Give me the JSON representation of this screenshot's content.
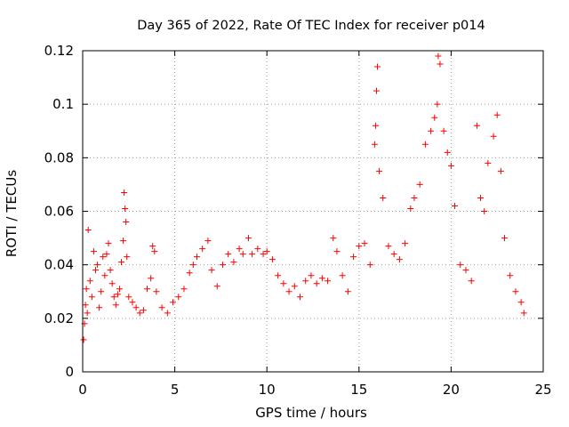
{
  "chart_data": {
    "type": "scatter",
    "title": "Day 365 of 2022, Rate Of TEC Index for receiver p014",
    "xlabel": "GPS time / hours",
    "ylabel": "ROTI / TECUs",
    "xlim": [
      0,
      25
    ],
    "ylim": [
      0,
      0.12
    ],
    "xticks": [
      0,
      5,
      10,
      15,
      20,
      25
    ],
    "yticks": [
      0,
      0.02,
      0.04,
      0.06,
      0.08,
      0.1,
      0.12
    ],
    "xtick_labels": [
      "0",
      "5",
      "10",
      "15",
      "20",
      "25"
    ],
    "ytick_labels": [
      "0",
      "0.02",
      "0.04",
      "0.06",
      "0.08",
      "0.1",
      "0.12"
    ],
    "grid": true,
    "marker": "+",
    "color": "#ff0000",
    "series": [
      {
        "name": "p014",
        "points": [
          [
            0.05,
            0.012
          ],
          [
            0.1,
            0.018
          ],
          [
            0.15,
            0.025
          ],
          [
            0.2,
            0.031
          ],
          [
            0.25,
            0.022
          ],
          [
            0.3,
            0.053
          ],
          [
            0.4,
            0.034
          ],
          [
            0.5,
            0.028
          ],
          [
            0.6,
            0.045
          ],
          [
            0.7,
            0.038
          ],
          [
            0.8,
            0.04
          ],
          [
            0.9,
            0.024
          ],
          [
            1.0,
            0.03
          ],
          [
            1.1,
            0.043
          ],
          [
            1.2,
            0.036
          ],
          [
            1.3,
            0.044
          ],
          [
            1.4,
            0.048
          ],
          [
            1.5,
            0.038
          ],
          [
            1.6,
            0.033
          ],
          [
            1.7,
            0.028
          ],
          [
            1.8,
            0.025
          ],
          [
            1.9,
            0.029
          ],
          [
            2.0,
            0.031
          ],
          [
            2.1,
            0.041
          ],
          [
            2.2,
            0.049
          ],
          [
            2.25,
            0.067
          ],
          [
            2.3,
            0.061
          ],
          [
            2.35,
            0.056
          ],
          [
            2.4,
            0.043
          ],
          [
            2.5,
            0.028
          ],
          [
            2.7,
            0.026
          ],
          [
            2.9,
            0.024
          ],
          [
            3.1,
            0.022
          ],
          [
            3.3,
            0.023
          ],
          [
            3.5,
            0.031
          ],
          [
            3.7,
            0.035
          ],
          [
            3.8,
            0.047
          ],
          [
            3.9,
            0.045
          ],
          [
            4.0,
            0.03
          ],
          [
            4.3,
            0.024
          ],
          [
            4.6,
            0.022
          ],
          [
            4.9,
            0.026
          ],
          [
            5.2,
            0.028
          ],
          [
            5.5,
            0.031
          ],
          [
            5.8,
            0.037
          ],
          [
            6.0,
            0.04
          ],
          [
            6.2,
            0.043
          ],
          [
            6.5,
            0.046
          ],
          [
            6.8,
            0.049
          ],
          [
            7.0,
            0.038
          ],
          [
            7.3,
            0.032
          ],
          [
            7.6,
            0.04
          ],
          [
            7.9,
            0.044
          ],
          [
            8.2,
            0.041
          ],
          [
            8.5,
            0.046
          ],
          [
            8.7,
            0.044
          ],
          [
            9.0,
            0.05
          ],
          [
            9.2,
            0.044
          ],
          [
            9.5,
            0.046
          ],
          [
            9.8,
            0.044
          ],
          [
            10.0,
            0.045
          ],
          [
            10.3,
            0.042
          ],
          [
            10.6,
            0.036
          ],
          [
            10.9,
            0.033
          ],
          [
            11.2,
            0.03
          ],
          [
            11.5,
            0.032
          ],
          [
            11.8,
            0.028
          ],
          [
            12.1,
            0.034
          ],
          [
            12.4,
            0.036
          ],
          [
            12.7,
            0.033
          ],
          [
            13.0,
            0.035
          ],
          [
            13.3,
            0.034
          ],
          [
            13.6,
            0.05
          ],
          [
            13.8,
            0.045
          ],
          [
            14.1,
            0.036
          ],
          [
            14.4,
            0.03
          ],
          [
            14.7,
            0.043
          ],
          [
            15.0,
            0.047
          ],
          [
            15.3,
            0.048
          ],
          [
            15.6,
            0.04
          ],
          [
            15.85,
            0.085
          ],
          [
            15.9,
            0.092
          ],
          [
            15.95,
            0.105
          ],
          [
            16.0,
            0.114
          ],
          [
            16.1,
            0.075
          ],
          [
            16.3,
            0.065
          ],
          [
            16.6,
            0.047
          ],
          [
            16.9,
            0.044
          ],
          [
            17.2,
            0.042
          ],
          [
            17.5,
            0.048
          ],
          [
            17.8,
            0.061
          ],
          [
            18.0,
            0.065
          ],
          [
            18.3,
            0.07
          ],
          [
            18.6,
            0.085
          ],
          [
            18.9,
            0.09
          ],
          [
            19.1,
            0.095
          ],
          [
            19.25,
            0.1
          ],
          [
            19.3,
            0.118
          ],
          [
            19.4,
            0.115
          ],
          [
            19.6,
            0.09
          ],
          [
            19.8,
            0.082
          ],
          [
            20.0,
            0.077
          ],
          [
            20.2,
            0.062
          ],
          [
            20.5,
            0.04
          ],
          [
            20.8,
            0.038
          ],
          [
            21.1,
            0.034
          ],
          [
            21.4,
            0.092
          ],
          [
            21.6,
            0.065
          ],
          [
            21.8,
            0.06
          ],
          [
            22.0,
            0.078
          ],
          [
            22.3,
            0.088
          ],
          [
            22.5,
            0.096
          ],
          [
            22.7,
            0.075
          ],
          [
            22.9,
            0.05
          ],
          [
            23.2,
            0.036
          ],
          [
            23.5,
            0.03
          ],
          [
            23.8,
            0.026
          ],
          [
            23.95,
            0.022
          ]
        ]
      }
    ]
  }
}
